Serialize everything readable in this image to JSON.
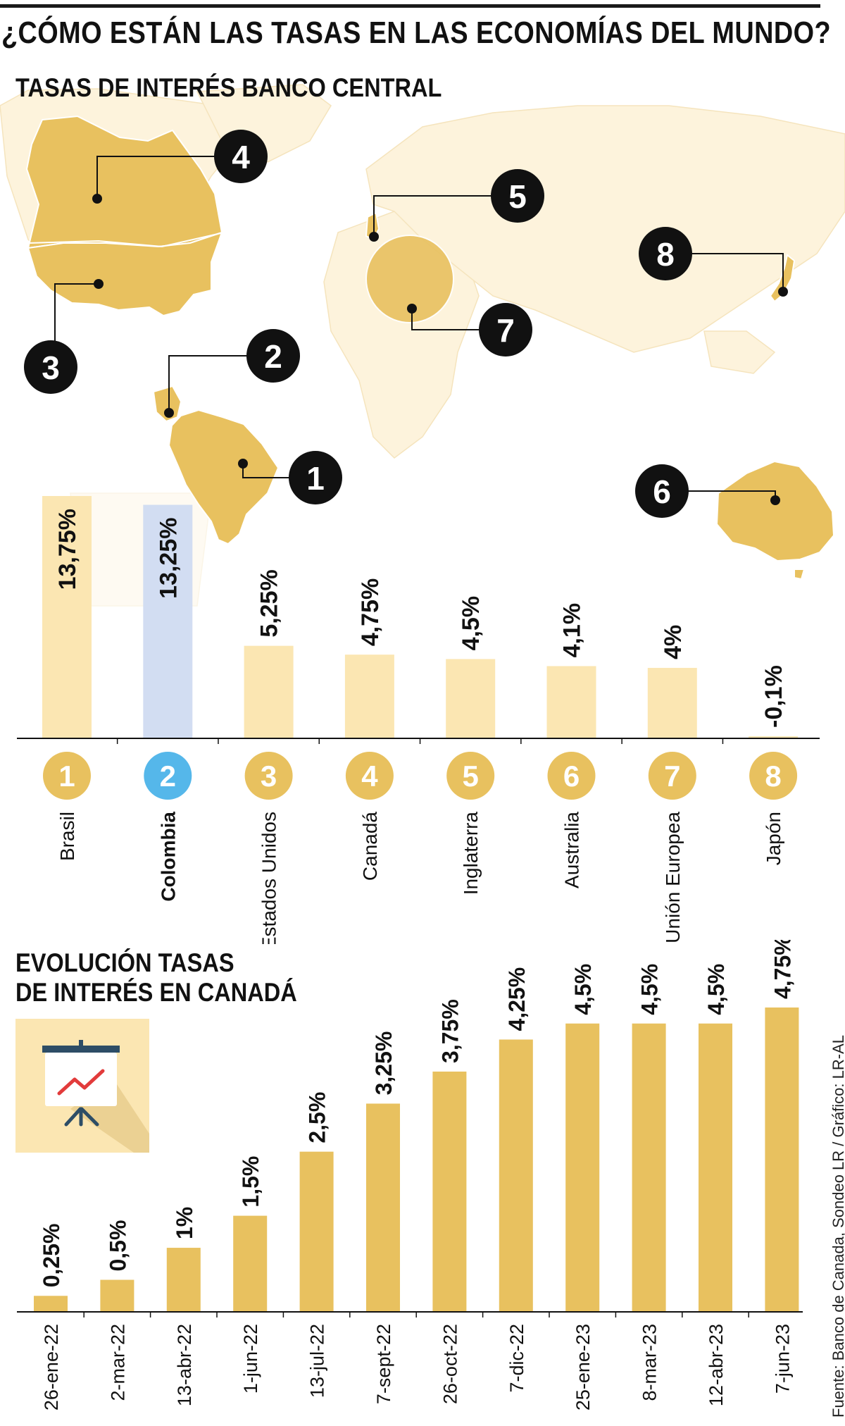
{
  "header": {
    "title": "¿CÓMO ESTÁN LAS TASAS EN LAS ECONOMÍAS DEL MUNDO?",
    "subtitle": "TASAS DE INTERÉS BANCO CENTRAL"
  },
  "section2": {
    "title_line1": "EVOLUCIÓN  TASAS",
    "title_line2": "DE INTERÉS EN CANADÁ"
  },
  "source": "Fuente: Banco de Canada, Sondeo LR / Gráfico: LR-AL",
  "colors": {
    "gold": "#e8c15f",
    "light_gold": "#fbe6b2",
    "map_light": "#fdf3dc",
    "blue_bar": "#d2ddf2",
    "blue_badge": "#55b7ea",
    "black": "#111111"
  },
  "icons": [
    "presentation-chart-icon",
    "world-map-icon"
  ],
  "map_markers": [
    {
      "number": "1",
      "country": "Brasil"
    },
    {
      "number": "2",
      "country": "Colombia"
    },
    {
      "number": "3",
      "country": "Estados Unidos"
    },
    {
      "number": "4",
      "country": "Canadá"
    },
    {
      "number": "5",
      "country": "Inglaterra"
    },
    {
      "number": "6",
      "country": "Australia"
    },
    {
      "number": "7",
      "country": "Unión Europea"
    },
    {
      "number": "8",
      "country": "Japón"
    }
  ],
  "chart_data": [
    {
      "type": "bar",
      "title": "TASAS DE INTERÉS BANCO CENTRAL",
      "badges": [
        "1",
        "2",
        "3",
        "4",
        "5",
        "6",
        "7",
        "8"
      ],
      "categories": [
        "Brasil",
        "Colombia",
        "Estados Unidos",
        "Canadá",
        "Inglaterra",
        "Australia",
        "Unión Europea",
        "Japón"
      ],
      "values": [
        13.75,
        13.25,
        5.25,
        4.75,
        4.5,
        4.1,
        4,
        -0.1
      ],
      "labels": [
        "13,75%",
        "13,25%",
        "5,25%",
        "4,75%",
        "4,5%",
        "4,1%",
        "4%",
        "-0,1%"
      ],
      "highlight": "Colombia",
      "ylim": [
        0,
        13.75
      ],
      "grid": false
    },
    {
      "type": "bar",
      "title": "EVOLUCIÓN  TASAS DE INTERÉS EN CANADÁ",
      "categories": [
        "26-ene-22",
        "2-mar-22",
        "13-abr-22",
        "1-jun-22",
        "13-jul-22",
        "7-sept-22",
        "26-oct-22",
        "7-dic-22",
        "25-ene-23",
        "8-mar-23",
        "12-abr-23",
        "7-jun-23"
      ],
      "values": [
        0.25,
        0.5,
        1,
        1.5,
        2.5,
        3.25,
        3.75,
        4.25,
        4.5,
        4.5,
        4.5,
        4.75
      ],
      "labels": [
        "0,25%",
        "0,5%",
        "1%",
        "1,5%",
        "2,5%",
        "3,25%",
        "3,75%",
        "4,25%",
        "4,5%",
        "4,5%",
        "4,5%",
        "4,75%"
      ],
      "ylim": [
        0,
        4.75
      ],
      "grid": false
    }
  ]
}
